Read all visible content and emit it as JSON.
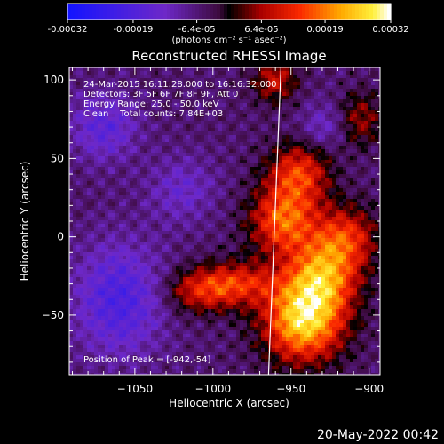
{
  "chart_data": {
    "type": "heatmap",
    "title": "Reconstructed RHESSI Image",
    "xlabel": "Heliocentric X (arcsec)",
    "ylabel": "Heliocentric Y (arcsec)",
    "xlim": [
      -1092,
      -893
    ],
    "ylim": [
      -88,
      108
    ],
    "xticks": [
      -1050,
      -1000,
      -950,
      -900
    ],
    "yticks": [
      100,
      50,
      0,
      -50
    ],
    "colorbar": {
      "min": -0.00032,
      "max": 0.00032,
      "ticks": [
        "-0.00032",
        "-0.00019",
        "-6.4e-05",
        "6.4e-05",
        "0.00019",
        "0.00032"
      ],
      "label": "(photons cm⁻² s⁻¹ asec⁻²)"
    },
    "annotations": [
      "24-Mar-2015 16:11:28.000 to 16:16:32.000",
      "Detectors: 3F 5F 6F 7F 8F 9F, Att 0",
      "Energy Range: 25.0 - 50.0 keV",
      "Clean    Total counts: 7.84E+03"
    ],
    "peak_label": "Position of Peak = [-942,-54]",
    "peak": [
      -942,
      -54
    ],
    "limb_line_x": -961,
    "features": [
      {
        "x": -942,
        "y": -54,
        "amp": 1.0,
        "sx": 18,
        "sy": 18
      },
      {
        "x": -930,
        "y": -25,
        "amp": 0.75,
        "sx": 16,
        "sy": 16
      },
      {
        "x": -955,
        "y": 10,
        "amp": 0.7,
        "sx": 15,
        "sy": 15
      },
      {
        "x": -945,
        "y": 40,
        "amp": 0.6,
        "sx": 14,
        "sy": 14
      },
      {
        "x": -915,
        "y": 0,
        "amp": 0.55,
        "sx": 14,
        "sy": 14
      },
      {
        "x": -985,
        "y": -30,
        "amp": 0.55,
        "sx": 18,
        "sy": 10
      },
      {
        "x": -1010,
        "y": -35,
        "amp": 0.4,
        "sx": 15,
        "sy": 10
      },
      {
        "x": -960,
        "y": 100,
        "amp": 0.45,
        "sx": 10,
        "sy": 10
      },
      {
        "x": -905,
        "y": 75,
        "amp": 0.35,
        "sx": 10,
        "sy": 12
      },
      {
        "x": -1060,
        "y": -40,
        "amp": -0.45,
        "sx": 20,
        "sy": 25
      },
      {
        "x": -1070,
        "y": 70,
        "amp": -0.35,
        "sx": 15,
        "sy": 15
      },
      {
        "x": -1020,
        "y": 30,
        "amp": -0.25,
        "sx": 15,
        "sy": 15
      },
      {
        "x": -930,
        "y": 70,
        "amp": -0.25,
        "sx": 10,
        "sy": 10
      }
    ]
  },
  "footer_date": "20-May-2022 00:42"
}
